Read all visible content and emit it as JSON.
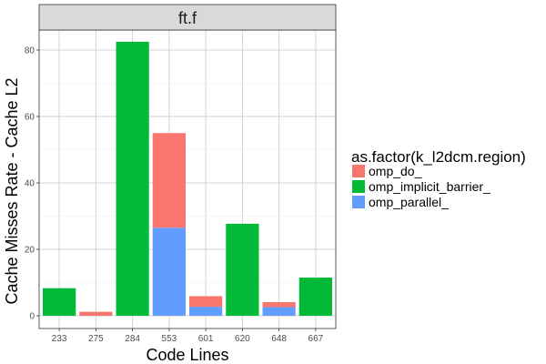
{
  "chart_data": {
    "type": "bar",
    "stacked": true,
    "facet_label": "ft.f",
    "xlabel": "Code Lines",
    "ylabel": "Cache Misses Rate - Cache L2",
    "categories": [
      "233",
      "275",
      "284",
      "553",
      "601",
      "620",
      "648",
      "667"
    ],
    "ylim": [
      0,
      86
    ],
    "yticks": [
      0,
      20,
      40,
      60,
      80
    ],
    "grid": true,
    "legend": {
      "title": "as.factor(k_l2dcm.region)",
      "position": "right"
    },
    "series": [
      {
        "name": "omp_do_",
        "color": "#F8766D",
        "values": [
          0,
          1.2,
          0,
          28.5,
          3.2,
          0,
          1.5,
          0
        ]
      },
      {
        "name": "omp_implicit_barrier_",
        "color": "#00BA38",
        "values": [
          8.3,
          0,
          82.5,
          0,
          0,
          27.7,
          0,
          11.5
        ]
      },
      {
        "name": "omp_parallel_",
        "color": "#619CFF",
        "values": [
          0,
          0,
          0,
          26.5,
          2.7,
          0,
          2.6,
          0
        ]
      }
    ],
    "stack_order": [
      "omp_parallel_",
      "omp_implicit_barrier_",
      "omp_do_"
    ]
  }
}
